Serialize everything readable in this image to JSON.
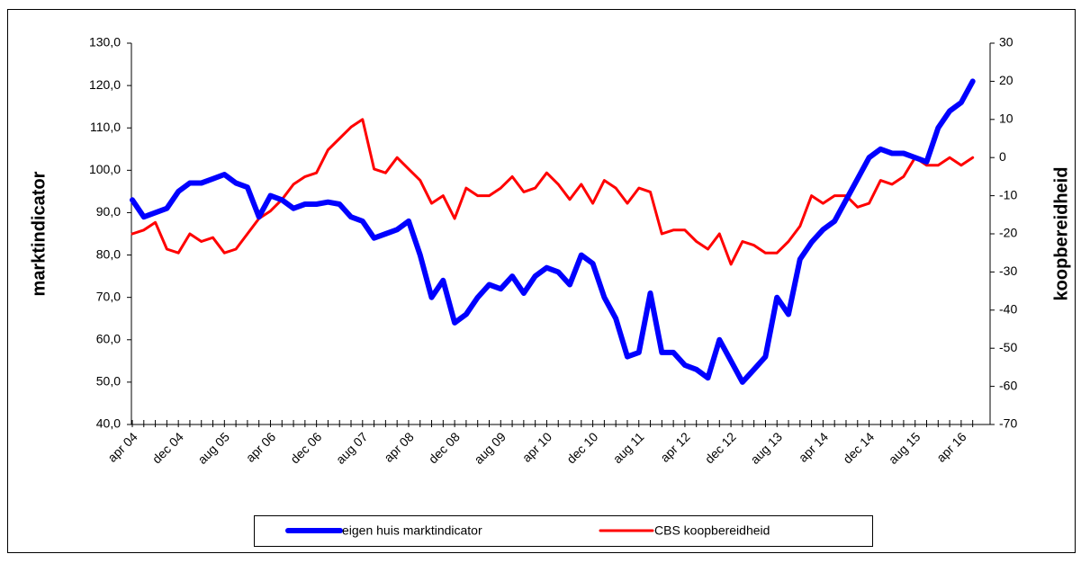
{
  "chart_data": {
    "type": "line",
    "y_label": "marktindicator",
    "y2_label": "koopbereidheid",
    "categories": [
      "apr 04",
      null,
      null,
      null,
      "dec 04",
      null,
      null,
      null,
      "aug 05",
      null,
      null,
      null,
      "apr 06",
      null,
      null,
      null,
      "dec 06",
      null,
      null,
      null,
      "aug 07",
      null,
      null,
      null,
      "apr 08",
      null,
      null,
      null,
      "dec 08",
      null,
      null,
      null,
      "aug 09",
      null,
      null,
      null,
      "apr 10",
      null,
      null,
      null,
      "dec 10",
      null,
      null,
      null,
      "aug 11",
      null,
      null,
      null,
      "apr 12",
      null,
      null,
      null,
      "dec 12",
      null,
      null,
      null,
      "aug 13",
      null,
      null,
      null,
      "apr 14",
      null,
      null,
      null,
      "dec 14",
      null,
      null,
      null,
      "aug 15",
      null,
      null,
      null,
      "apr 16",
      null
    ],
    "series": [
      {
        "name": "eigen huis marktindicator",
        "color": "#0000ff",
        "values": [
          93,
          89,
          90,
          91,
          95,
          97,
          97,
          98,
          99,
          97,
          96,
          89,
          94,
          93,
          91,
          92,
          92,
          92.5,
          92,
          89,
          88,
          84,
          85,
          86,
          88,
          80,
          70,
          74,
          64,
          66,
          70,
          73,
          72,
          75,
          71,
          75,
          77,
          76,
          73,
          80,
          78,
          70,
          65,
          56,
          57,
          71,
          57,
          57,
          54,
          53,
          51,
          60,
          55,
          50,
          53,
          56,
          70,
          66,
          79,
          83,
          86,
          88,
          93,
          98,
          103,
          105,
          104,
          104,
          103,
          102,
          110,
          114,
          116,
          121
        ]
      },
      {
        "name": "CBS koopbereidheid",
        "color": "#ff0000",
        "axis": "y2",
        "values": [
          -20,
          -19,
          -17,
          -24,
          -25,
          -20,
          -22,
          -21,
          -25,
          -24,
          -20,
          -16,
          -14,
          -11,
          -7,
          -5,
          -4,
          2,
          5,
          8,
          10,
          -3,
          -4,
          0,
          -3,
          -6,
          -12,
          -10,
          -16,
          -8,
          -10,
          -10,
          -8,
          -5,
          -9,
          -8,
          -4,
          -7,
          -11,
          -7,
          -12,
          -6,
          -8,
          -12,
          -8,
          -9,
          -20,
          -19,
          -19,
          -22,
          -24,
          -20,
          -28,
          -22,
          -23,
          -25,
          -25,
          -22,
          -18,
          -10,
          -12,
          -10,
          -10,
          -13,
          -12,
          -6,
          -7,
          -5,
          0,
          -2,
          -2,
          0,
          -2,
          0
        ]
      }
    ],
    "ylim": [
      40,
      130
    ],
    "yticks": [
      {
        "value": 40,
        "label": "40,0"
      },
      {
        "value": 50,
        "label": "50,0"
      },
      {
        "value": 60,
        "label": "60,0"
      },
      {
        "value": 70,
        "label": "70,0"
      },
      {
        "value": 80,
        "label": "80,0"
      },
      {
        "value": 90,
        "label": "90,0"
      },
      {
        "value": 100,
        "label": "100,0"
      },
      {
        "value": 110,
        "label": "110,0"
      },
      {
        "value": 120,
        "label": "120,0"
      },
      {
        "value": 130,
        "label": "130,0"
      }
    ],
    "y2lim": [
      -70,
      30
    ],
    "y2ticks": [
      -70,
      -60,
      -50,
      -40,
      -30,
      -20,
      -10,
      0,
      10,
      20,
      30
    ],
    "legend": "bottom"
  }
}
